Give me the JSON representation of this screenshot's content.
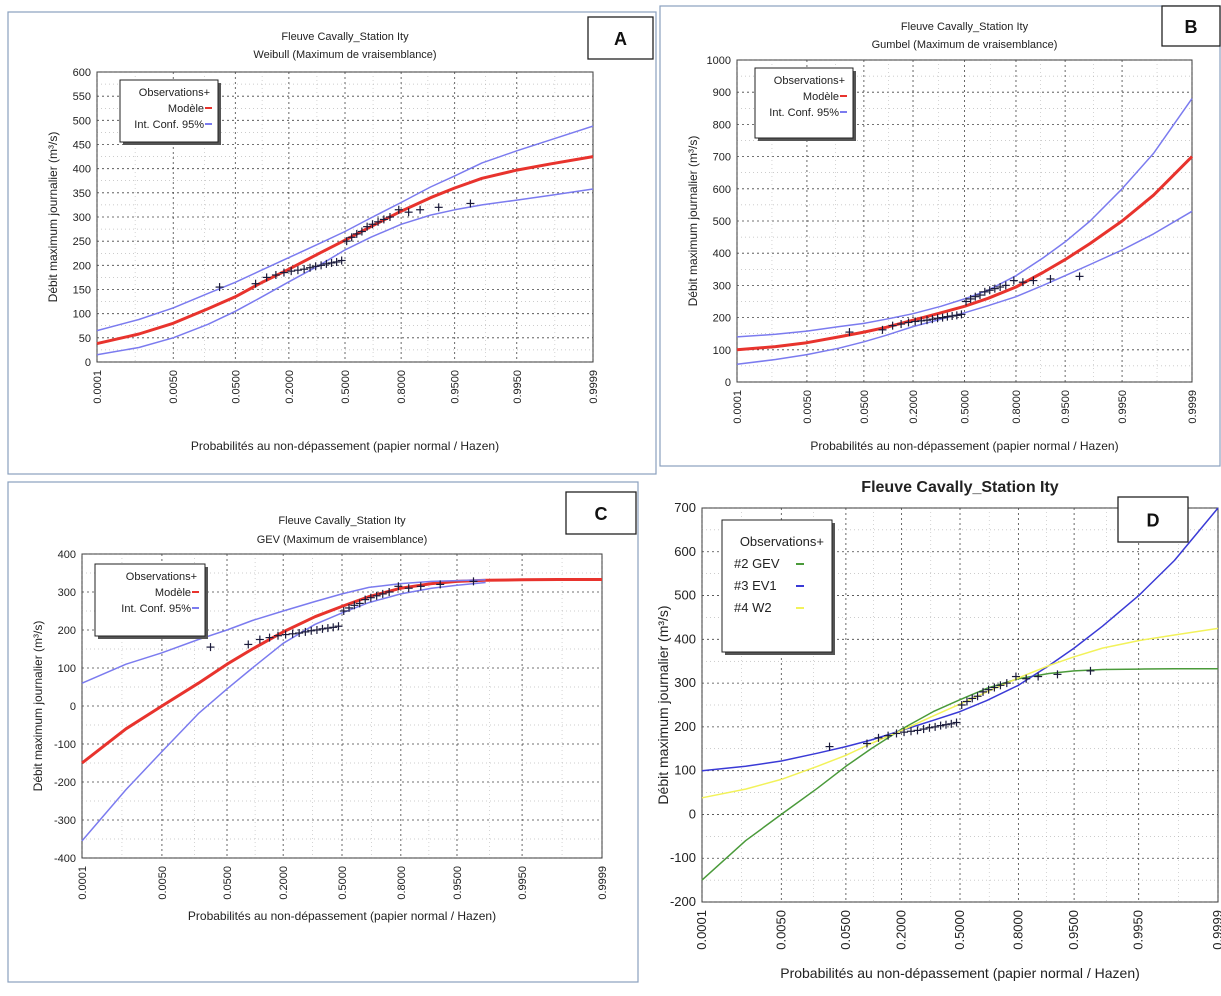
{
  "panels": [
    {
      "id": "A",
      "title": "Fleuve Cavally_Station Ity",
      "subtitle": "Weibull (Maximum de vraisemblance)",
      "ylabel": "Débit maximum journalier (m³/s)",
      "xlabel": "Probabilités au non-dépassement (papier normal / Hazen)",
      "legend": [
        "Observations+",
        "Modèle",
        "Int. Conf. 95%"
      ]
    },
    {
      "id": "B",
      "title": "Fleuve Cavally_Station Ity",
      "subtitle": "Gumbel (Maximum de vraisemblance)",
      "ylabel": "Débit maximum journalier (m³/s)",
      "xlabel": "Probabilités au non-dépassement (papier normal / Hazen)",
      "legend": [
        "Observations+",
        "Modèle",
        "Int. Conf. 95%"
      ]
    },
    {
      "id": "C",
      "title": "Fleuve Cavally_Station Ity",
      "subtitle": "GEV (Maximum de vraisemblance)",
      "ylabel": "Débit maximum journalier (m³/s)",
      "xlabel": "Probabilités au non-dépassement (papier normal / Hazen)",
      "legend": [
        "Observations+",
        "Modèle",
        "Int. Conf. 95%"
      ]
    },
    {
      "id": "D",
      "title": "Fleuve Cavally_Station Ity",
      "subtitle": "",
      "ylabel": "Débit maximum journalier (m³/s)",
      "xlabel": "Probabilités au non-dépassement (papier normal / Hazen)",
      "legend": [
        "Observations+",
        "#2 GEV",
        "#3 EV1",
        "#4 W2"
      ]
    }
  ],
  "chart_data": [
    {
      "id": "A",
      "type": "line",
      "x_scale": "normal-probability",
      "x_ticks": [
        "0.0001",
        "0.0050",
        "0.0500",
        "0.2000",
        "0.5000",
        "0.8000",
        "0.9500",
        "0.9950",
        "0.9999"
      ],
      "y_ticks": [
        0,
        50,
        100,
        150,
        200,
        250,
        300,
        350,
        400,
        450,
        500,
        550,
        600
      ],
      "ylim": [
        0,
        600
      ],
      "series": [
        {
          "name": "Modèle",
          "color": "#e8332d",
          "x": [
            0.0001,
            0.001,
            0.005,
            0.02,
            0.05,
            0.1,
            0.2,
            0.35,
            0.5,
            0.65,
            0.8,
            0.9,
            0.95,
            0.98,
            0.995,
            0.999,
            0.9999
          ],
          "y": [
            38,
            58,
            80,
            110,
            135,
            162,
            192,
            225,
            252,
            280,
            312,
            340,
            360,
            380,
            397,
            410,
            425
          ]
        },
        {
          "name": "Int. Conf. 95%",
          "color": "#7b7bef",
          "x": [
            0.0001,
            0.001,
            0.005,
            0.02,
            0.05,
            0.1,
            0.2,
            0.35,
            0.5,
            0.65,
            0.8,
            0.9,
            0.95,
            0.98,
            0.995,
            0.999,
            0.9999
          ],
          "y": [
            65,
            88,
            112,
            142,
            165,
            188,
            216,
            245,
            270,
            298,
            330,
            362,
            385,
            412,
            437,
            460,
            488
          ]
        },
        {
          "name": "Int. Conf. 95%",
          "color": "#7b7bef",
          "x": [
            0.0001,
            0.001,
            0.005,
            0.02,
            0.05,
            0.1,
            0.2,
            0.35,
            0.5,
            0.65,
            0.8,
            0.9,
            0.95,
            0.98,
            0.995,
            0.999,
            0.9999
          ],
          "y": [
            15,
            30,
            50,
            78,
            105,
            132,
            166,
            200,
            232,
            258,
            285,
            304,
            315,
            325,
            335,
            345,
            358
          ]
        },
        {
          "name": "Observations",
          "color": "#1a1a3a",
          "marker": "+",
          "x": [
            0.03,
            0.09,
            0.12,
            0.15,
            0.18,
            0.21,
            0.24,
            0.27,
            0.3,
            0.33,
            0.36,
            0.39,
            0.42,
            0.45,
            0.48,
            0.51,
            0.54,
            0.57,
            0.6,
            0.63,
            0.66,
            0.69,
            0.72,
            0.75,
            0.79,
            0.83,
            0.87,
            0.92,
            0.97
          ],
          "y": [
            155,
            162,
            175,
            180,
            185,
            188,
            190,
            192,
            195,
            198,
            200,
            203,
            205,
            207,
            210,
            250,
            258,
            265,
            270,
            280,
            285,
            290,
            295,
            300,
            315,
            310,
            315,
            320,
            328
          ]
        }
      ]
    },
    {
      "id": "B",
      "type": "line",
      "x_scale": "normal-probability",
      "x_ticks": [
        "0.0001",
        "0.0050",
        "0.0500",
        "0.2000",
        "0.5000",
        "0.8000",
        "0.9500",
        "0.9950",
        "0.9999"
      ],
      "y_ticks": [
        0,
        100,
        200,
        300,
        400,
        500,
        600,
        700,
        800,
        900,
        1000
      ],
      "ylim": [
        0,
        1000
      ],
      "series": [
        {
          "name": "Modèle",
          "color": "#e8332d",
          "x": [
            0.0001,
            0.001,
            0.005,
            0.02,
            0.05,
            0.1,
            0.2,
            0.35,
            0.5,
            0.65,
            0.8,
            0.9,
            0.95,
            0.98,
            0.995,
            0.999,
            0.9999
          ],
          "y": [
            100,
            110,
            122,
            140,
            155,
            170,
            192,
            215,
            235,
            260,
            295,
            340,
            380,
            430,
            500,
            580,
            700
          ]
        },
        {
          "name": "Int. Conf. 95%",
          "color": "#7b7bef",
          "x": [
            0.0001,
            0.001,
            0.005,
            0.02,
            0.05,
            0.1,
            0.2,
            0.35,
            0.5,
            0.65,
            0.8,
            0.9,
            0.95,
            0.98,
            0.995,
            0.999,
            0.9999
          ],
          "y": [
            140,
            148,
            158,
            172,
            182,
            195,
            212,
            235,
            258,
            285,
            330,
            385,
            435,
            500,
            600,
            710,
            880
          ]
        },
        {
          "name": "Int. Conf. 95%",
          "color": "#7b7bef",
          "x": [
            0.0001,
            0.001,
            0.005,
            0.02,
            0.05,
            0.1,
            0.2,
            0.35,
            0.5,
            0.65,
            0.8,
            0.9,
            0.95,
            0.98,
            0.995,
            0.999,
            0.9999
          ],
          "y": [
            55,
            70,
            85,
            105,
            125,
            145,
            172,
            195,
            215,
            237,
            265,
            300,
            330,
            365,
            410,
            460,
            530
          ]
        },
        {
          "name": "Observations",
          "color": "#1a1a3a",
          "marker": "+",
          "x": [
            0.03,
            0.09,
            0.12,
            0.15,
            0.18,
            0.21,
            0.24,
            0.27,
            0.3,
            0.33,
            0.36,
            0.39,
            0.42,
            0.45,
            0.48,
            0.51,
            0.54,
            0.57,
            0.6,
            0.63,
            0.66,
            0.69,
            0.72,
            0.75,
            0.79,
            0.83,
            0.87,
            0.92,
            0.97
          ],
          "y": [
            155,
            162,
            175,
            180,
            185,
            188,
            190,
            192,
            195,
            198,
            200,
            203,
            205,
            207,
            210,
            250,
            258,
            265,
            270,
            280,
            285,
            290,
            295,
            300,
            315,
            310,
            315,
            320,
            328
          ]
        }
      ]
    },
    {
      "id": "C",
      "type": "line",
      "x_scale": "normal-probability",
      "x_ticks": [
        "0.0001",
        "0.0050",
        "0.0500",
        "0.2000",
        "0.5000",
        "0.8000",
        "0.9500",
        "0.9950",
        "0.9999"
      ],
      "y_ticks": [
        -400,
        -300,
        -200,
        -100,
        0,
        100,
        200,
        300,
        400
      ],
      "ylim": [
        -400,
        400
      ],
      "series": [
        {
          "name": "Modèle",
          "color": "#e8332d",
          "x": [
            0.0001,
            0.001,
            0.005,
            0.02,
            0.05,
            0.1,
            0.2,
            0.35,
            0.5,
            0.65,
            0.8,
            0.9,
            0.95,
            0.98,
            0.995,
            0.999,
            0.9999
          ],
          "y": [
            -150,
            -60,
            0,
            60,
            110,
            150,
            195,
            235,
            262,
            288,
            310,
            322,
            328,
            331,
            332,
            333,
            333
          ]
        },
        {
          "name": "Int. Conf. 95%",
          "color": "#7b7bef",
          "x": [
            0.0001,
            0.001,
            0.005,
            0.02,
            0.05,
            0.1,
            0.2,
            0.35,
            0.5,
            0.65,
            0.8,
            0.9,
            0.95,
            0.98
          ],
          "y": [
            60,
            110,
            140,
            175,
            200,
            225,
            250,
            275,
            295,
            312,
            322,
            328,
            330,
            332
          ]
        },
        {
          "name": "Int. Conf. 95%",
          "color": "#7b7bef",
          "x": [
            0.0001,
            0.001,
            0.005,
            0.02,
            0.05,
            0.1,
            0.2,
            0.35,
            0.5,
            0.65,
            0.8,
            0.9,
            0.95,
            0.98
          ],
          "y": [
            -355,
            -220,
            -120,
            -20,
            45,
            100,
            165,
            215,
            245,
            272,
            295,
            310,
            318,
            325
          ]
        },
        {
          "name": "Observations",
          "color": "#1a1a3a",
          "marker": "+",
          "x": [
            0.03,
            0.09,
            0.12,
            0.15,
            0.18,
            0.21,
            0.24,
            0.27,
            0.3,
            0.33,
            0.36,
            0.39,
            0.42,
            0.45,
            0.48,
            0.51,
            0.54,
            0.57,
            0.6,
            0.63,
            0.66,
            0.69,
            0.72,
            0.75,
            0.79,
            0.83,
            0.87,
            0.92,
            0.97
          ],
          "y": [
            155,
            162,
            175,
            180,
            185,
            188,
            190,
            192,
            195,
            198,
            200,
            203,
            205,
            207,
            210,
            250,
            258,
            265,
            270,
            280,
            285,
            290,
            295,
            300,
            315,
            310,
            315,
            320,
            328
          ]
        }
      ]
    },
    {
      "id": "D",
      "type": "line",
      "x_scale": "normal-probability",
      "x_ticks": [
        "0.0001",
        "0.0050",
        "0.0500",
        "0.2000",
        "0.5000",
        "0.8000",
        "0.9500",
        "0.9950",
        "0.9999"
      ],
      "y_ticks": [
        -200,
        -100,
        0,
        100,
        200,
        300,
        400,
        500,
        600,
        700
      ],
      "ylim": [
        -200,
        700
      ],
      "series": [
        {
          "name": "#2 GEV",
          "color": "#4a9a3a",
          "x": [
            0.0001,
            0.001,
            0.005,
            0.02,
            0.05,
            0.1,
            0.2,
            0.35,
            0.5,
            0.65,
            0.8,
            0.9,
            0.95,
            0.98,
            0.995,
            0.999,
            0.9999
          ],
          "y": [
            -150,
            -60,
            0,
            60,
            110,
            150,
            195,
            235,
            262,
            288,
            310,
            322,
            328,
            331,
            332,
            333,
            333
          ]
        },
        {
          "name": "#3 EV1",
          "color": "#3a3ad6",
          "x": [
            0.0001,
            0.001,
            0.005,
            0.02,
            0.05,
            0.1,
            0.2,
            0.35,
            0.5,
            0.65,
            0.8,
            0.9,
            0.95,
            0.98,
            0.995,
            0.999,
            0.9999
          ],
          "y": [
            100,
            110,
            122,
            140,
            155,
            170,
            192,
            215,
            235,
            260,
            295,
            340,
            380,
            430,
            500,
            580,
            700
          ]
        },
        {
          "name": "#4 W2",
          "color": "#f2f25a",
          "x": [
            0.0001,
            0.001,
            0.005,
            0.02,
            0.05,
            0.1,
            0.2,
            0.35,
            0.5,
            0.65,
            0.8,
            0.9,
            0.95,
            0.98,
            0.995,
            0.999,
            0.9999
          ],
          "y": [
            38,
            58,
            80,
            110,
            135,
            162,
            192,
            225,
            252,
            280,
            312,
            340,
            360,
            380,
            397,
            410,
            425
          ]
        },
        {
          "name": "Observations",
          "color": "#1a1a3a",
          "marker": "+",
          "x": [
            0.03,
            0.09,
            0.12,
            0.15,
            0.18,
            0.21,
            0.24,
            0.27,
            0.3,
            0.33,
            0.36,
            0.39,
            0.42,
            0.45,
            0.48,
            0.51,
            0.54,
            0.57,
            0.6,
            0.63,
            0.66,
            0.69,
            0.72,
            0.75,
            0.79,
            0.83,
            0.87,
            0.92,
            0.97
          ],
          "y": [
            155,
            162,
            175,
            180,
            185,
            188,
            190,
            192,
            195,
            198,
            200,
            203,
            205,
            207,
            210,
            250,
            258,
            265,
            270,
            280,
            285,
            290,
            295,
            300,
            315,
            310,
            315,
            320,
            328
          ]
        }
      ]
    }
  ]
}
